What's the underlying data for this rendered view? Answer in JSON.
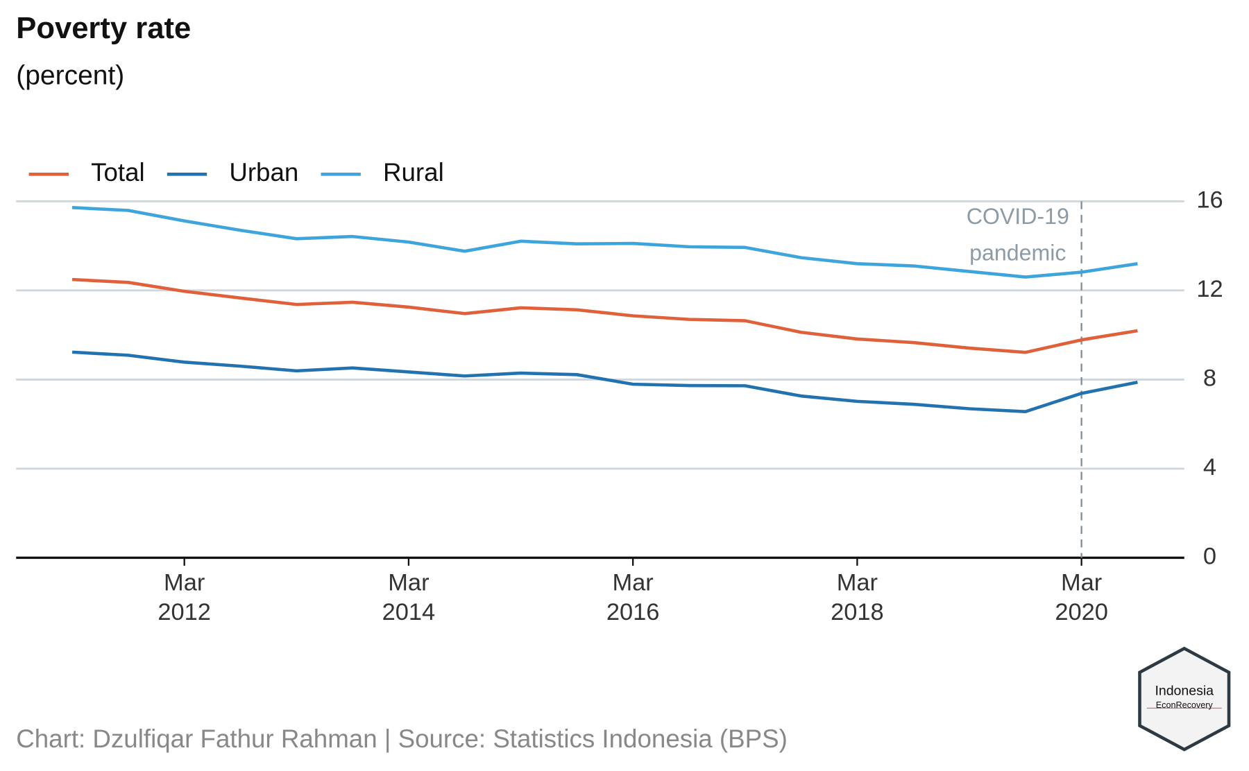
{
  "chart_data": {
    "type": "line",
    "title": "Poverty rate",
    "subtitle": "(percent)",
    "x": [
      "2011-03",
      "2011-09",
      "2012-03",
      "2012-09",
      "2013-03",
      "2013-09",
      "2014-03",
      "2014-09",
      "2015-03",
      "2015-09",
      "2016-03",
      "2016-09",
      "2017-03",
      "2017-09",
      "2018-03",
      "2018-09",
      "2019-03",
      "2019-09",
      "2020-03",
      "2020-09"
    ],
    "series": [
      {
        "name": "Total",
        "color": "#e0603a",
        "values": [
          12.49,
          12.36,
          11.96,
          11.66,
          11.37,
          11.47,
          11.25,
          10.96,
          11.22,
          11.13,
          10.86,
          10.7,
          10.64,
          10.12,
          9.82,
          9.66,
          9.41,
          9.22,
          9.78,
          10.19
        ]
      },
      {
        "name": "Urban",
        "color": "#2372b0",
        "values": [
          9.23,
          9.09,
          8.78,
          8.6,
          8.39,
          8.52,
          8.34,
          8.16,
          8.29,
          8.22,
          7.79,
          7.73,
          7.72,
          7.26,
          7.02,
          6.89,
          6.69,
          6.56,
          7.38,
          7.88
        ]
      },
      {
        "name": "Rural",
        "color": "#3da5dc",
        "values": [
          15.72,
          15.59,
          15.12,
          14.7,
          14.32,
          14.42,
          14.17,
          13.76,
          14.21,
          14.09,
          14.11,
          13.96,
          13.93,
          13.47,
          13.2,
          13.1,
          12.85,
          12.6,
          12.82,
          13.2
        ]
      }
    ],
    "xlim": [
      "2010-09",
      "2021-02"
    ],
    "xticks": [
      {
        "value": "2012-03",
        "label": "Mar 2012"
      },
      {
        "value": "2014-03",
        "label": "Mar 2014"
      },
      {
        "value": "2016-03",
        "label": "Mar 2016"
      },
      {
        "value": "2018-03",
        "label": "Mar 2018"
      },
      {
        "value": "2020-03",
        "label": "Mar 2020"
      }
    ],
    "ylim": [
      0,
      16
    ],
    "yticks": [
      0,
      4,
      8,
      12,
      16
    ],
    "grid": true,
    "legend": "top-left",
    "annotation": {
      "x": "2020-03",
      "text": [
        "COVID-19",
        "pandemic"
      ]
    },
    "caption": "Chart: Dzulfiqar Fathur Rahman | Source: Statistics Indonesia (BPS)",
    "logo": {
      "title": "Indonesia",
      "subtitle": "EconRecovery"
    }
  }
}
